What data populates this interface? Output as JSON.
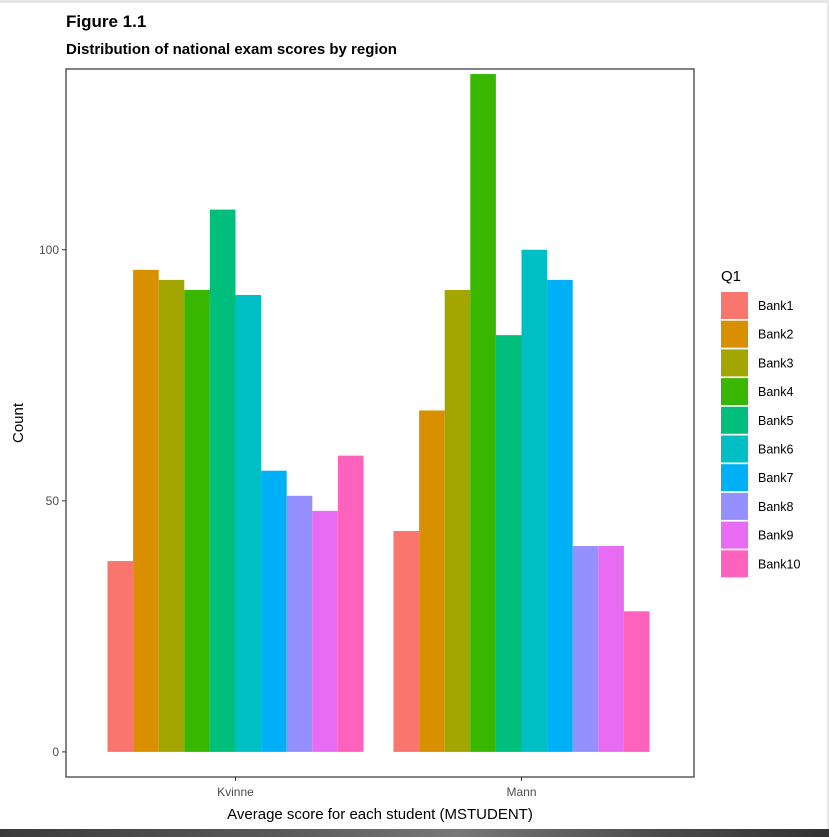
{
  "figure": {
    "title": "Figure 1.1",
    "subtitle": "Distribution of national exam scores by region"
  },
  "chart_data": {
    "type": "bar",
    "categories": [
      "Kvinne",
      "Mann"
    ],
    "xlabel": "Average score for each student (MSTUDENT)",
    "ylabel": "Count",
    "ylim": [
      -5,
      136
    ],
    "yticks": [
      0,
      50,
      100
    ],
    "grid": false,
    "legend": {
      "title": "Q1",
      "position": "right"
    },
    "series": [
      {
        "name": "Bank1",
        "color": "#F8766D",
        "values": [
          38,
          44
        ]
      },
      {
        "name": "Bank2",
        "color": "#D89000",
        "values": [
          96,
          68
        ]
      },
      {
        "name": "Bank3",
        "color": "#A3A500",
        "values": [
          94,
          92
        ]
      },
      {
        "name": "Bank4",
        "color": "#39B600",
        "values": [
          92,
          135
        ]
      },
      {
        "name": "Bank5",
        "color": "#00BF7D",
        "values": [
          108,
          83
        ]
      },
      {
        "name": "Bank6",
        "color": "#00BFC4",
        "values": [
          91,
          100
        ]
      },
      {
        "name": "Bank7",
        "color": "#00B0F6",
        "values": [
          56,
          94
        ]
      },
      {
        "name": "Bank8",
        "color": "#9590FF",
        "values": [
          51,
          41
        ]
      },
      {
        "name": "Bank9",
        "color": "#E76BF3",
        "values": [
          48,
          41
        ]
      },
      {
        "name": "Bank10",
        "color": "#FF62BC",
        "values": [
          59,
          28
        ]
      }
    ]
  }
}
